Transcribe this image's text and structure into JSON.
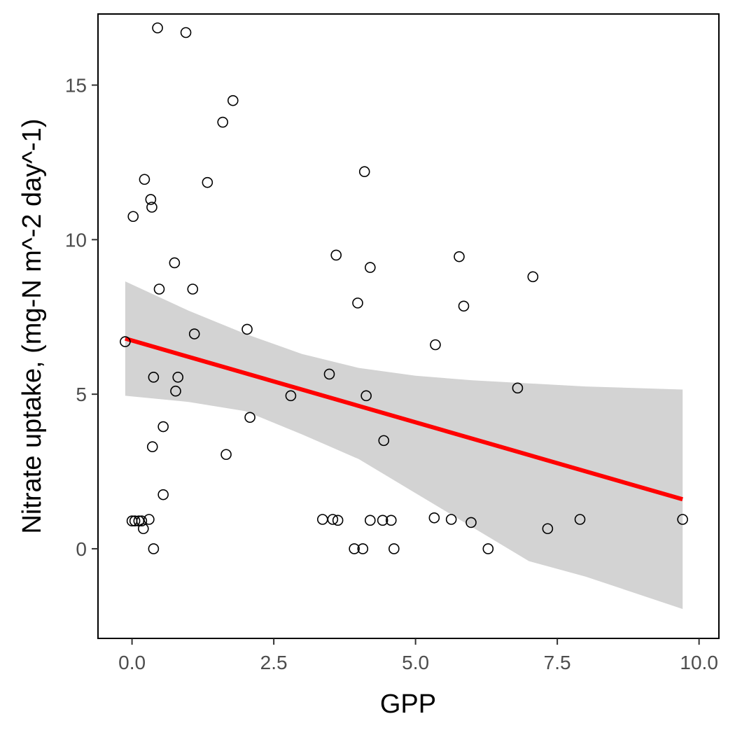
{
  "chart_data": {
    "type": "scatter",
    "title": "",
    "xlabel": "GPP",
    "ylabel": "Nitrate uptake, (mg-N m^-2 day^-1)",
    "xlim": [
      -0.6,
      10.35
    ],
    "ylim": [
      -2.9,
      17.3
    ],
    "x_ticks": [
      {
        "value": 0,
        "label": "0.0"
      },
      {
        "value": 2.5,
        "label": "2.5"
      },
      {
        "value": 5,
        "label": "5.0"
      },
      {
        "value": 7.5,
        "label": "7.5"
      },
      {
        "value": 10,
        "label": "10.0"
      }
    ],
    "y_ticks": [
      {
        "value": 0,
        "label": "0"
      },
      {
        "value": 5,
        "label": "5"
      },
      {
        "value": 10,
        "label": "10"
      },
      {
        "value": 15,
        "label": "15"
      }
    ],
    "grid": false,
    "points": [
      {
        "x": 0.45,
        "y": 16.85
      },
      {
        "x": 0.95,
        "y": 16.7
      },
      {
        "x": 1.78,
        "y": 14.5
      },
      {
        "x": 1.6,
        "y": 13.8
      },
      {
        "x": 0.22,
        "y": 11.95
      },
      {
        "x": 1.33,
        "y": 11.85
      },
      {
        "x": 0.33,
        "y": 11.3
      },
      {
        "x": 0.35,
        "y": 11.05
      },
      {
        "x": 0.02,
        "y": 10.75
      },
      {
        "x": 0.75,
        "y": 9.25
      },
      {
        "x": 0.48,
        "y": 8.4
      },
      {
        "x": 1.07,
        "y": 8.4
      },
      {
        "x": -0.12,
        "y": 6.7
      },
      {
        "x": 1.1,
        "y": 6.95
      },
      {
        "x": 2.03,
        "y": 7.1
      },
      {
        "x": 0.38,
        "y": 5.55
      },
      {
        "x": 0.81,
        "y": 5.55
      },
      {
        "x": 0.77,
        "y": 5.1
      },
      {
        "x": 0.55,
        "y": 3.95
      },
      {
        "x": 0.36,
        "y": 3.3
      },
      {
        "x": 1.66,
        "y": 3.05
      },
      {
        "x": 2.08,
        "y": 4.25
      },
      {
        "x": 2.8,
        "y": 4.95
      },
      {
        "x": 0.55,
        "y": 1.75
      },
      {
        "x": 0.0,
        "y": 0.9
      },
      {
        "x": 0.05,
        "y": 0.9
      },
      {
        "x": 0.12,
        "y": 0.9
      },
      {
        "x": 0.17,
        "y": 0.9
      },
      {
        "x": 0.3,
        "y": 0.95
      },
      {
        "x": 0.2,
        "y": 0.65
      },
      {
        "x": 0.38,
        "y": 0.0
      },
      {
        "x": 3.48,
        "y": 5.65
      },
      {
        "x": 3.6,
        "y": 9.5
      },
      {
        "x": 3.98,
        "y": 7.95
      },
      {
        "x": 4.1,
        "y": 12.2
      },
      {
        "x": 4.2,
        "y": 9.1
      },
      {
        "x": 4.13,
        "y": 4.95
      },
      {
        "x": 4.44,
        "y": 3.5
      },
      {
        "x": 3.36,
        "y": 0.95
      },
      {
        "x": 3.54,
        "y": 0.95
      },
      {
        "x": 3.63,
        "y": 0.92
      },
      {
        "x": 4.2,
        "y": 0.92
      },
      {
        "x": 4.42,
        "y": 0.92
      },
      {
        "x": 4.57,
        "y": 0.92
      },
      {
        "x": 3.92,
        "y": 0.0
      },
      {
        "x": 4.07,
        "y": 0.0
      },
      {
        "x": 4.62,
        "y": 0.0
      },
      {
        "x": 5.35,
        "y": 6.6
      },
      {
        "x": 5.77,
        "y": 9.45
      },
      {
        "x": 5.85,
        "y": 7.85
      },
      {
        "x": 5.33,
        "y": 1.0
      },
      {
        "x": 5.63,
        "y": 0.95
      },
      {
        "x": 5.98,
        "y": 0.85
      },
      {
        "x": 6.28,
        "y": 0.0
      },
      {
        "x": 7.07,
        "y": 8.8
      },
      {
        "x": 6.8,
        "y": 5.2
      },
      {
        "x": 7.33,
        "y": 0.65
      },
      {
        "x": 7.9,
        "y": 0.95
      },
      {
        "x": 9.71,
        "y": 0.95
      }
    ],
    "trend_line": {
      "color": "#ff0000",
      "x": [
        -0.12,
        9.71
      ],
      "y": [
        6.8,
        1.6
      ]
    },
    "confidence_band": {
      "color": "#d3d3d3",
      "x": [
        -0.12,
        1.0,
        2.0,
        3.0,
        4.0,
        5.0,
        6.0,
        7.0,
        8.0,
        9.71
      ],
      "upper": [
        8.65,
        7.7,
        6.95,
        6.3,
        5.85,
        5.6,
        5.45,
        5.35,
        5.25,
        5.15
      ],
      "lower": [
        4.95,
        4.75,
        4.45,
        3.7,
        2.9,
        1.8,
        0.7,
        -0.4,
        -0.9,
        -1.95
      ]
    }
  }
}
